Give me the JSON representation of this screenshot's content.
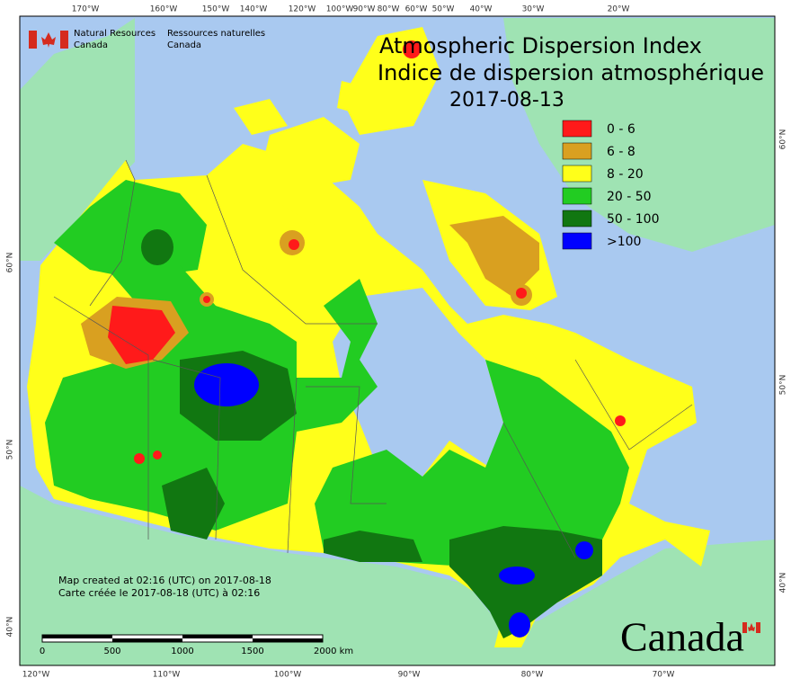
{
  "header": {
    "agency_en": [
      "Natural Resources",
      "Canada"
    ],
    "agency_fr": [
      "Ressources naturelles",
      "Canada"
    ],
    "title_en": "Atmospheric Dispersion Index",
    "title_fr": "Indice de dispersion atmosphérique",
    "date": "2017-08-13"
  },
  "legend": {
    "items": [
      {
        "label": "0 - 6",
        "color": "#ff1a1a"
      },
      {
        "label": "6 - 8",
        "color": "#d9a020"
      },
      {
        "label": "8 - 20",
        "color": "#ffff1a"
      },
      {
        "label": "20 - 50",
        "color": "#22cc22"
      },
      {
        "label": "50 - 100",
        "color": "#117711"
      },
      {
        "label": ">100",
        "color": "#0000ff"
      }
    ]
  },
  "axes": {
    "top": [
      "170°W",
      "160°W",
      "150°W",
      "140°W",
      "120°W",
      "100°W",
      "90°W",
      "80°W",
      "60°W",
      "50°W",
      "40°W",
      "30°W",
      "20°W"
    ],
    "bottom": [
      "120°W",
      "110°W",
      "100°W",
      "90°W",
      "80°W",
      "70°W"
    ],
    "left": [
      "60°N",
      "50°N",
      "40°N"
    ],
    "right": [
      "60°N",
      "50°N",
      "40°N"
    ]
  },
  "notes": [
    "Map created at 02:16 (UTC) on 2017-08-18",
    "Carte créée le 2017-08-18 (UTC) à 02:16"
  ],
  "scale_bar": [
    "0",
    "500",
    "1000",
    "1500",
    "2000 km"
  ],
  "wordmark": "Canada"
}
